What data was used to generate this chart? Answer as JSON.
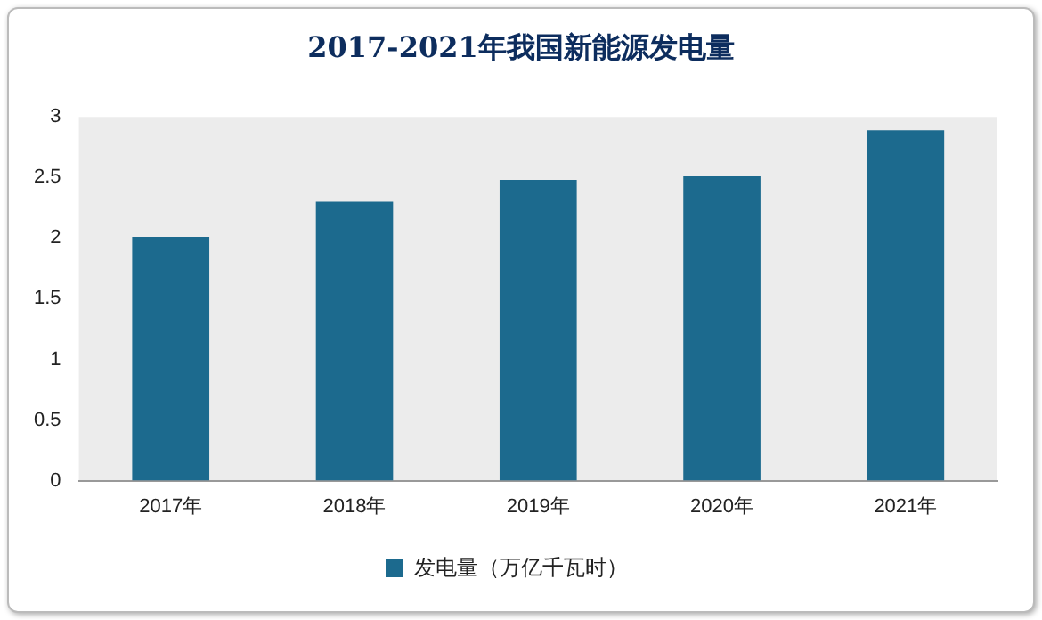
{
  "chart_data": {
    "type": "bar",
    "title": "2017-2021年我国新能源发电量",
    "categories": [
      "2017年",
      "2018年",
      "2019年",
      "2020年",
      "2021年"
    ],
    "series": [
      {
        "name": "发电量（万亿千瓦时）",
        "color": "#1c6a8e",
        "values": [
          2.01,
          2.3,
          2.48,
          2.51,
          2.89
        ]
      }
    ],
    "ylim": [
      0,
      3
    ],
    "yticks": [
      0,
      0.5,
      1,
      1.5,
      2,
      2.5,
      3
    ],
    "grid": false,
    "legend": "bottom"
  }
}
